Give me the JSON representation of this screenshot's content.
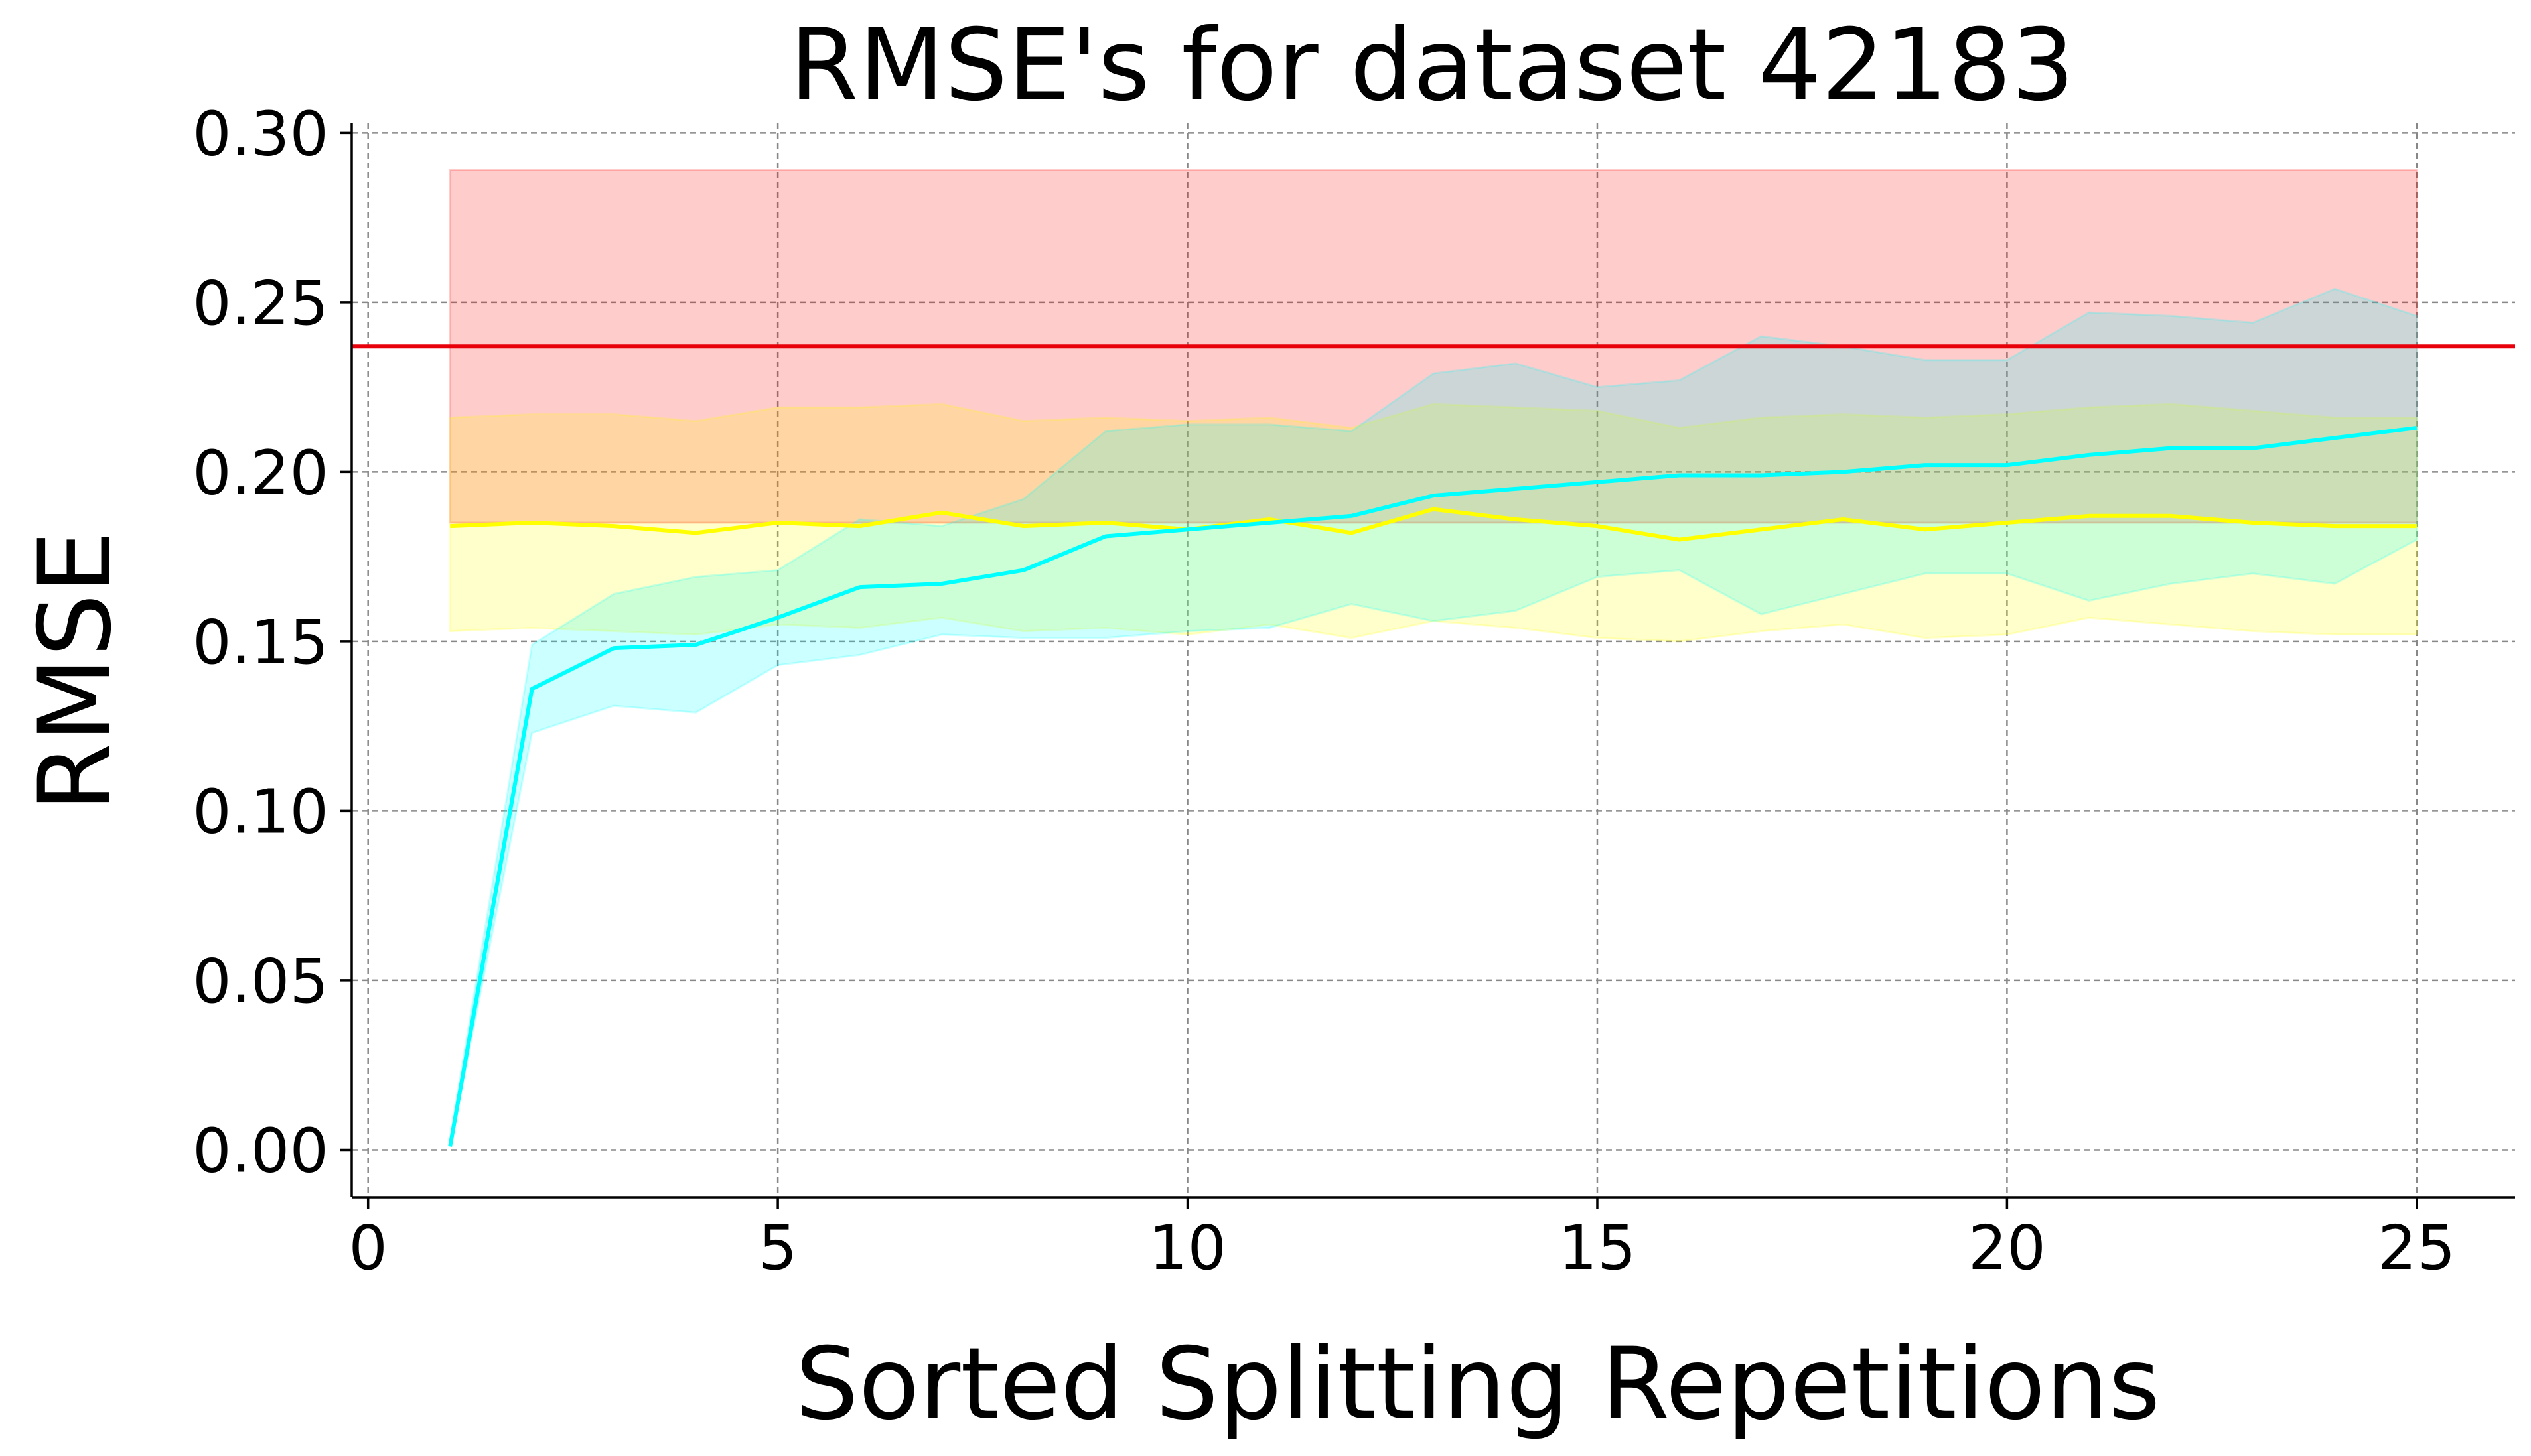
{
  "chart_data": {
    "type": "line",
    "title": "RMSE's for dataset 42183",
    "xlabel": "Sorted Splitting Repetitions",
    "ylabel": "RMSE",
    "xlim": [
      -0.2,
      26.2
    ],
    "ylim": [
      -0.014,
      0.303
    ],
    "xticks": [
      0,
      5,
      10,
      15,
      20,
      25
    ],
    "xtick_labels": [
      "0",
      "5",
      "10",
      "15",
      "20",
      "25"
    ],
    "yticks": [
      0.0,
      0.05,
      0.1,
      0.15,
      0.2,
      0.25,
      0.3
    ],
    "ytick_labels": [
      "0.00",
      "0.05",
      "0.10",
      "0.15",
      "0.20",
      "0.25",
      "0.30"
    ],
    "grid": true,
    "x": [
      1,
      2,
      3,
      4,
      5,
      6,
      7,
      8,
      9,
      10,
      11,
      12,
      13,
      14,
      15,
      16,
      17,
      18,
      19,
      20,
      21,
      22,
      23,
      24,
      25
    ],
    "reference_line": {
      "y": 0.237,
      "color": "#e8000b"
    },
    "bands": [
      {
        "color": "#ff0000",
        "opacity": 0.2,
        "x": [
          1,
          25
        ],
        "lower": [
          0.185,
          0.185
        ],
        "upper": [
          0.289,
          0.289
        ]
      },
      {
        "color": "#ffff00",
        "opacity": 0.2,
        "x": [
          1,
          2,
          3,
          4,
          5,
          6,
          7,
          8,
          9,
          10,
          11,
          12,
          13,
          14,
          15,
          16,
          17,
          18,
          19,
          20,
          21,
          22,
          23,
          24,
          25
        ],
        "lower": [
          0.153,
          0.154,
          0.153,
          0.152,
          0.155,
          0.154,
          0.157,
          0.153,
          0.154,
          0.152,
          0.155,
          0.151,
          0.156,
          0.154,
          0.151,
          0.15,
          0.153,
          0.155,
          0.151,
          0.152,
          0.157,
          0.155,
          0.153,
          0.152,
          0.152
        ],
        "upper": [
          0.216,
          0.217,
          0.217,
          0.215,
          0.219,
          0.219,
          0.22,
          0.215,
          0.216,
          0.215,
          0.216,
          0.213,
          0.22,
          0.219,
          0.218,
          0.213,
          0.216,
          0.217,
          0.216,
          0.217,
          0.219,
          0.22,
          0.218,
          0.216,
          0.216
        ]
      },
      {
        "color": "#00ffff",
        "opacity": 0.2,
        "x": [
          1,
          2,
          3,
          4,
          5,
          6,
          7,
          8,
          9,
          10,
          11,
          12,
          13,
          14,
          15,
          16,
          17,
          18,
          19,
          20,
          21,
          22,
          23,
          24,
          25
        ],
        "lower": [
          0.001,
          0.123,
          0.131,
          0.129,
          0.143,
          0.146,
          0.152,
          0.151,
          0.151,
          0.153,
          0.154,
          0.161,
          0.156,
          0.159,
          0.169,
          0.171,
          0.158,
          0.164,
          0.17,
          0.17,
          0.162,
          0.167,
          0.17,
          0.167,
          0.18
        ],
        "upper": [
          0.003,
          0.149,
          0.164,
          0.169,
          0.171,
          0.186,
          0.184,
          0.192,
          0.212,
          0.214,
          0.214,
          0.212,
          0.229,
          0.232,
          0.225,
          0.227,
          0.24,
          0.237,
          0.233,
          0.233,
          0.247,
          0.246,
          0.244,
          0.254,
          0.246
        ]
      }
    ],
    "series": [
      {
        "color": "#ffff00",
        "values": [
          0.184,
          0.185,
          0.184,
          0.182,
          0.185,
          0.184,
          0.188,
          0.184,
          0.185,
          0.183,
          0.186,
          0.182,
          0.189,
          0.186,
          0.184,
          0.18,
          0.183,
          0.186,
          0.183,
          0.185,
          0.187,
          0.187,
          0.185,
          0.184,
          0.184
        ]
      },
      {
        "color": "#00ffff",
        "values": [
          0.001,
          0.136,
          0.148,
          0.149,
          0.157,
          0.166,
          0.167,
          0.171,
          0.181,
          0.183,
          0.185,
          0.187,
          0.193,
          0.195,
          0.197,
          0.199,
          0.199,
          0.2,
          0.202,
          0.202,
          0.205,
          0.207,
          0.207,
          0.21,
          0.213
        ]
      }
    ]
  }
}
